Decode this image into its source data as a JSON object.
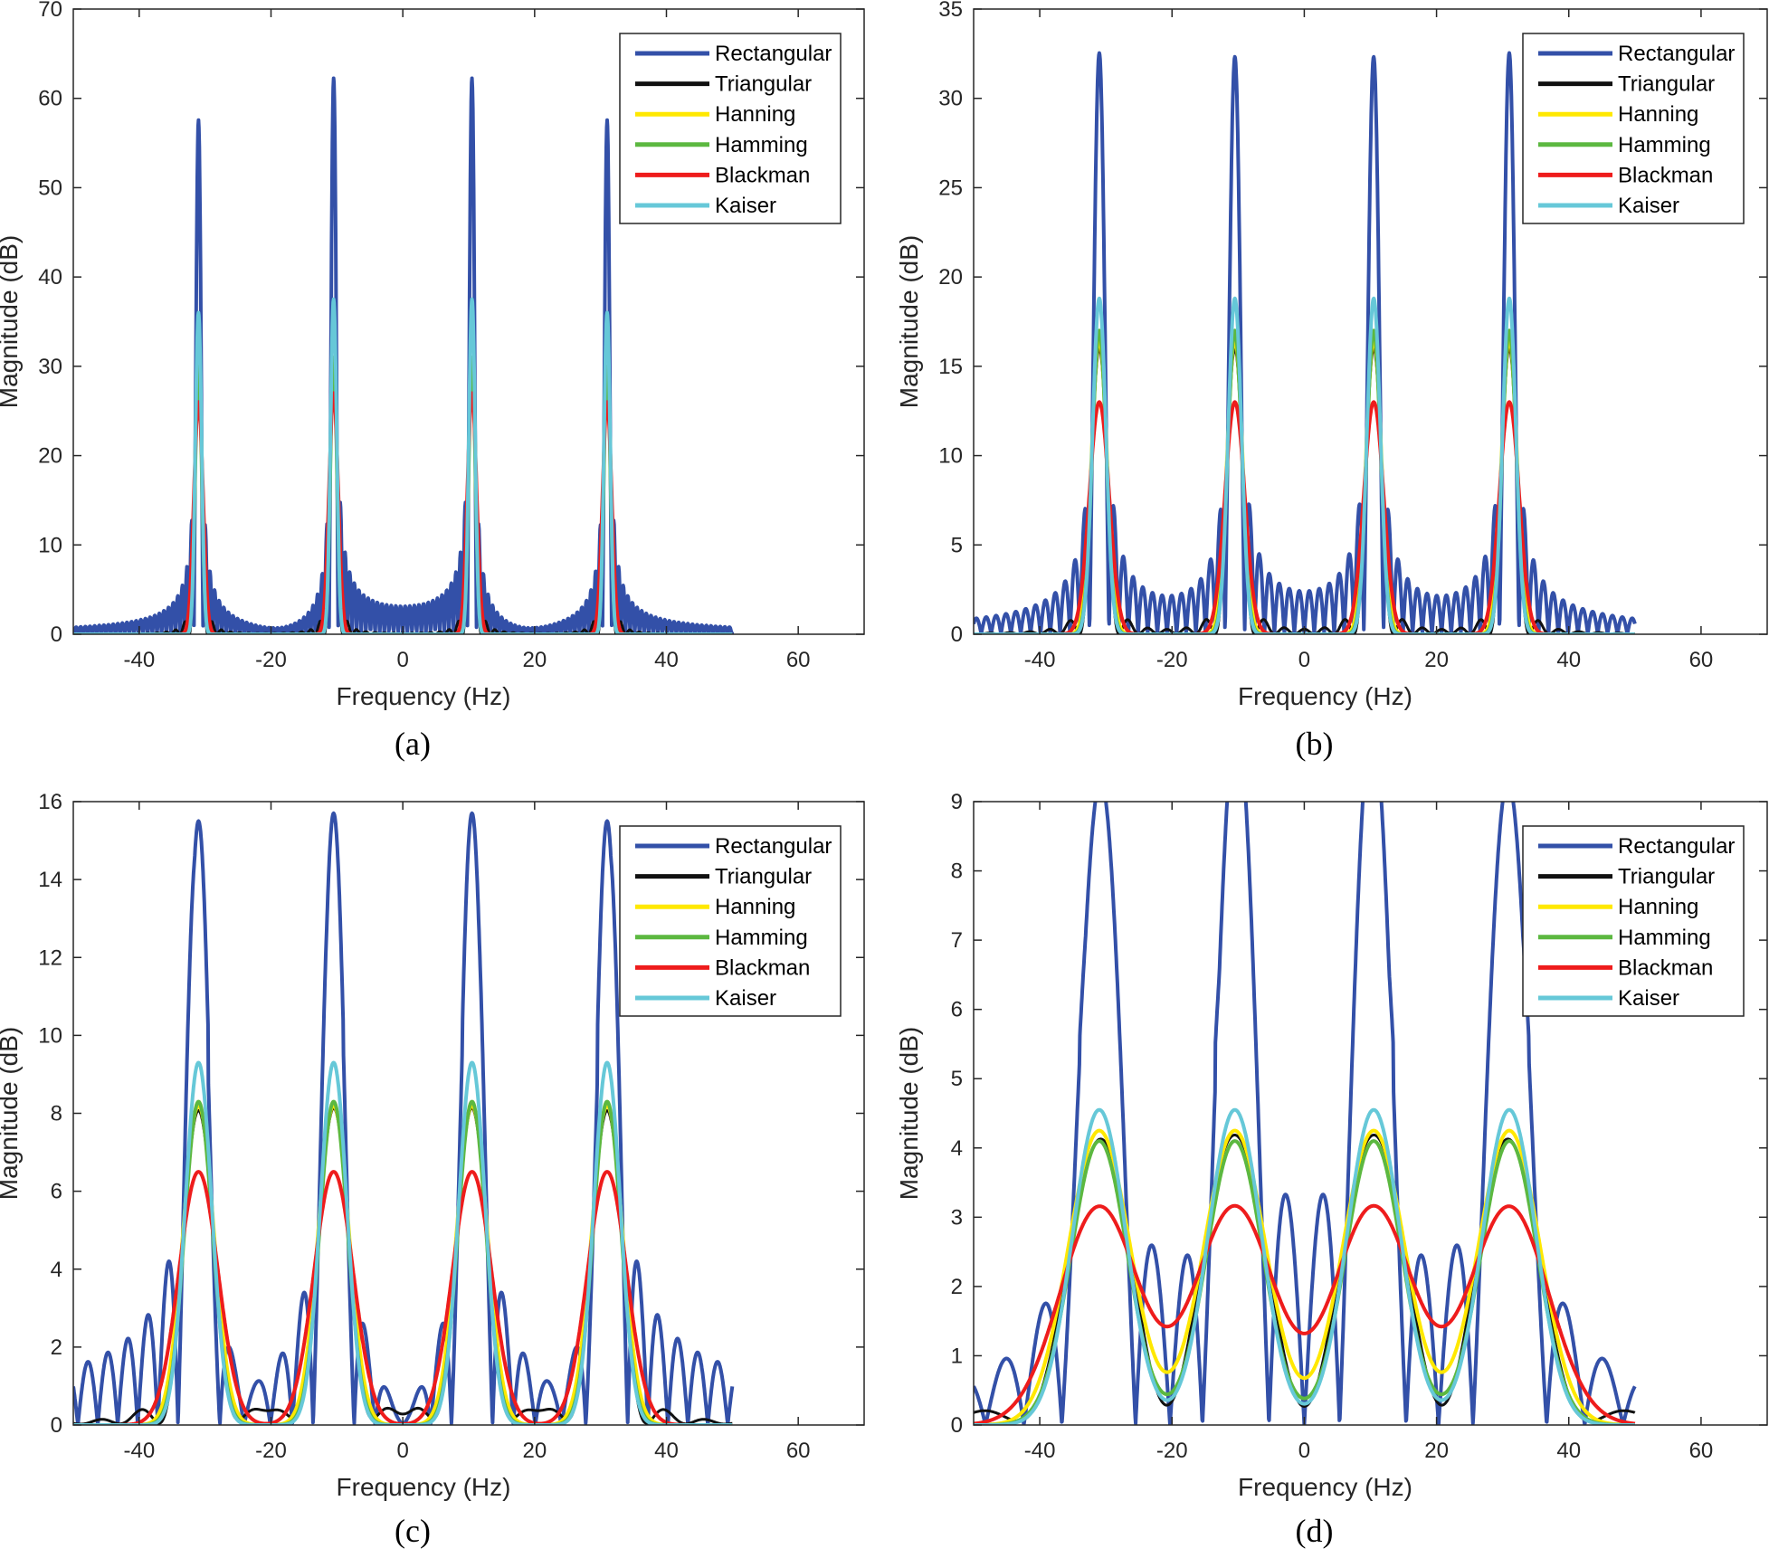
{
  "chart_data": [
    {
      "type": "line",
      "caption": "(a)",
      "xlabel": "Frequency (Hz)",
      "ylabel": "Magnitude (dB)",
      "xlim": [
        -50,
        70
      ],
      "ylim": [
        0,
        70
      ],
      "xticks": [
        -40,
        -20,
        0,
        20,
        40,
        60
      ],
      "yticks": [
        0,
        10,
        20,
        30,
        40,
        50,
        60,
        70
      ],
      "data_x_range": [
        -50,
        50
      ],
      "peak_freqs_hz": [
        -31,
        -10.5,
        10.5,
        31
      ],
      "mainlobe_halfwidth_hz": 0.7,
      "legend": "top-right",
      "grid": false,
      "series": [
        {
          "name": "Rectangular",
          "color": "#3350a8",
          "peaks": [
            57.5,
            62,
            62,
            57.5
          ]
        },
        {
          "name": "Triangular",
          "color": "#111111",
          "peaks": [
            30,
            31,
            31,
            30
          ]
        },
        {
          "name": "Hanning",
          "color": "#ffe800",
          "peaks": [
            30,
            31,
            31,
            30
          ]
        },
        {
          "name": "Hamming",
          "color": "#5cb840",
          "peaks": [
            30,
            31,
            31,
            30
          ]
        },
        {
          "name": "Blackman",
          "color": "#ee1c1c",
          "peaks": [
            26,
            27,
            27,
            26
          ]
        },
        {
          "name": "Kaiser",
          "color": "#66c8d8",
          "peaks": [
            36,
            37.5,
            37.5,
            36
          ]
        }
      ]
    },
    {
      "type": "line",
      "caption": "(b)",
      "xlabel": "Frequency (Hz)",
      "ylabel": "Magnitude (dB)",
      "xlim": [
        -50,
        70
      ],
      "ylim": [
        0,
        35
      ],
      "xticks": [
        -40,
        -20,
        0,
        20,
        40,
        60
      ],
      "yticks": [
        0,
        5,
        10,
        15,
        20,
        25,
        30,
        35
      ],
      "data_x_range": [
        -50,
        50
      ],
      "peak_freqs_hz": [
        -31,
        -10.5,
        10.5,
        31
      ],
      "mainlobe_halfwidth_hz": 1.5,
      "legend": "top-right",
      "grid": false,
      "series": [
        {
          "name": "Rectangular",
          "color": "#3350a8",
          "peaks": [
            32,
            32,
            32,
            32
          ]
        },
        {
          "name": "Triangular",
          "color": "#111111",
          "peaks": [
            16,
            16,
            16,
            16
          ]
        },
        {
          "name": "Hanning",
          "color": "#ffe800",
          "peaks": [
            16.5,
            16.5,
            16.5,
            16.5
          ]
        },
        {
          "name": "Hamming",
          "color": "#5cb840",
          "peaks": [
            17,
            17,
            17,
            17
          ]
        },
        {
          "name": "Blackman",
          "color": "#ee1c1c",
          "peaks": [
            13,
            13,
            13,
            13
          ]
        },
        {
          "name": "Kaiser",
          "color": "#66c8d8",
          "peaks": [
            18.8,
            18.8,
            18.8,
            18.8
          ]
        }
      ]
    },
    {
      "type": "line",
      "caption": "(c)",
      "xlabel": "Frequency (Hz)",
      "ylabel": "Magnitude (dB)",
      "xlim": [
        -50,
        70
      ],
      "ylim": [
        0,
        16
      ],
      "xticks": [
        -40,
        -20,
        0,
        20,
        40,
        60
      ],
      "yticks": [
        0,
        2,
        4,
        6,
        8,
        10,
        12,
        14,
        16
      ],
      "data_x_range": [
        -50,
        50
      ],
      "peak_freqs_hz": [
        -31,
        -10.5,
        10.5,
        31
      ],
      "mainlobe_halfwidth_hz": 3,
      "legend": "top-right",
      "grid": false,
      "series": [
        {
          "name": "Rectangular",
          "color": "#3350a8",
          "peaks": [
            15.5,
            15.7,
            15.7,
            15.5
          ]
        },
        {
          "name": "Triangular",
          "color": "#111111",
          "peaks": [
            8,
            8,
            8,
            8
          ]
        },
        {
          "name": "Hanning",
          "color": "#ffe800",
          "peaks": [
            8.2,
            8.2,
            8.2,
            8.2
          ]
        },
        {
          "name": "Hamming",
          "color": "#5cb840",
          "peaks": [
            8.3,
            8.3,
            8.3,
            8.3
          ]
        },
        {
          "name": "Blackman",
          "color": "#ee1c1c",
          "peaks": [
            6.5,
            6.5,
            6.5,
            6.5
          ]
        },
        {
          "name": "Kaiser",
          "color": "#66c8d8",
          "peaks": [
            9.3,
            9.3,
            9.3,
            9.3
          ]
        }
      ]
    },
    {
      "type": "line",
      "caption": "(d)",
      "xlabel": "Frequency (Hz)",
      "ylabel": "Magnitude (dB)",
      "xlim": [
        -50,
        70
      ],
      "ylim": [
        0,
        9
      ],
      "xticks": [
        -40,
        -20,
        0,
        20,
        40,
        60
      ],
      "yticks": [
        0,
        1,
        2,
        3,
        4,
        5,
        6,
        7,
        8,
        9
      ],
      "data_x_range": [
        -50,
        50
      ],
      "peak_freqs_hz": [
        -31,
        -10.5,
        10.5,
        31
      ],
      "mainlobe_halfwidth_hz": 6,
      "legend": "top-right",
      "grid": false,
      "series": [
        {
          "name": "Rectangular",
          "color": "#3350a8",
          "peaks": [
            8.65,
            8.5,
            8.5,
            8.65
          ]
        },
        {
          "name": "Triangular",
          "color": "#111111",
          "peaks": [
            4,
            4,
            4,
            4
          ]
        },
        {
          "name": "Hanning",
          "color": "#ffe800",
          "peaks": [
            4.25,
            4.25,
            4.25,
            4.25
          ]
        },
        {
          "name": "Hamming",
          "color": "#5cb840",
          "peaks": [
            4.1,
            4.1,
            4.1,
            4.1
          ]
        },
        {
          "name": "Blackman",
          "color": "#ee1c1c",
          "peaks": [
            3.15,
            3.15,
            3.15,
            3.15
          ]
        },
        {
          "name": "Kaiser",
          "color": "#66c8d8",
          "peaks": [
            4.55,
            4.55,
            4.55,
            4.55
          ]
        }
      ]
    }
  ]
}
